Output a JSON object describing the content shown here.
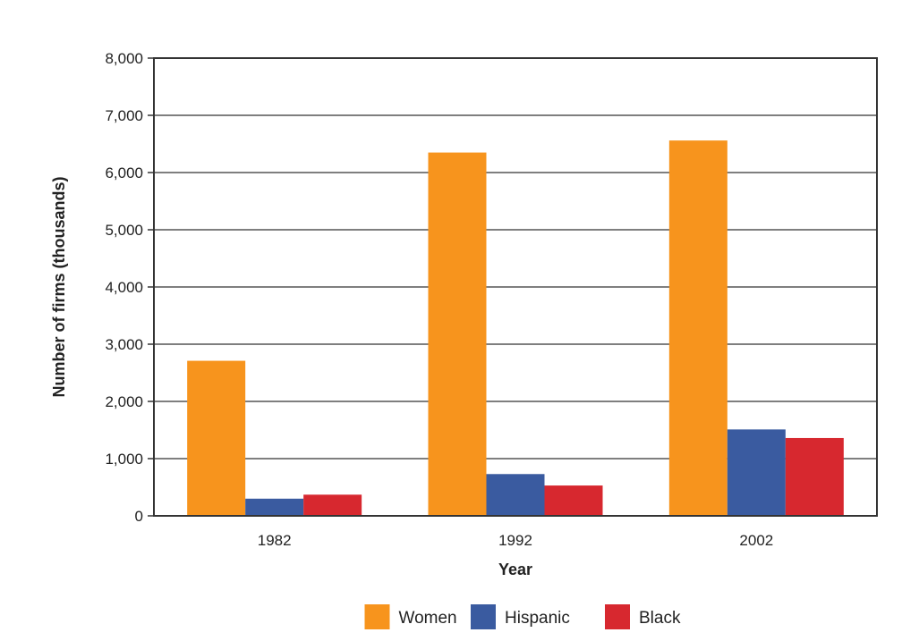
{
  "chart_data": {
    "type": "bar",
    "title": "",
    "xlabel": "Year",
    "ylabel": "Number of firms (thousands)",
    "categories": [
      "1982",
      "1992",
      "2002"
    ],
    "series": [
      {
        "name": "Women",
        "color": "#F7941D",
        "values": [
          2710,
          6350,
          6560
        ]
      },
      {
        "name": "Hispanic",
        "color": "#3A5BA0",
        "values": [
          300,
          730,
          1510
        ]
      },
      {
        "name": "Black",
        "color": "#D7282F",
        "values": [
          370,
          530,
          1360
        ]
      }
    ],
    "ylim": [
      0,
      8000
    ],
    "yticks": [
      "0",
      "1,000",
      "2,000",
      "3,000",
      "4,000",
      "5,000",
      "6,000",
      "7,000",
      "8,000"
    ],
    "ytick_values": [
      0,
      1000,
      2000,
      3000,
      4000,
      5000,
      6000,
      7000,
      8000
    ],
    "grid": true,
    "legend_position": "bottom-center"
  }
}
